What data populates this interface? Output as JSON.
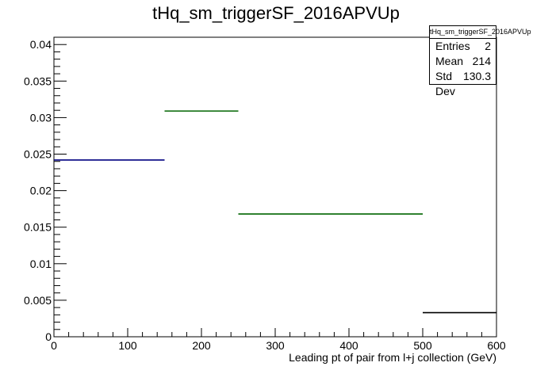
{
  "chart_data": {
    "type": "histogram",
    "title": "tHq_sm_triggerSF_2016APVUp",
    "xlabel": "Leading pt of pair from l+j collection (GeV)",
    "ylabel": "",
    "xlim": [
      0,
      600
    ],
    "ylim": [
      0,
      0.041
    ],
    "x_ticks": [
      0,
      100,
      200,
      300,
      400,
      500,
      600
    ],
    "x_tick_labels": [
      "0",
      "100",
      "200",
      "300",
      "400",
      "500",
      "600"
    ],
    "y_ticks": [
      0,
      0.005,
      0.01,
      0.015,
      0.02,
      0.025,
      0.03,
      0.035,
      0.04
    ],
    "y_tick_labels": [
      "0",
      "0.005",
      "0.01",
      "0.015",
      "0.02",
      "0.025",
      "0.03",
      "0.035",
      "0.04"
    ],
    "bins": [
      {
        "x0": 0,
        "x1": 150,
        "value": 0.0242,
        "color": "#000080"
      },
      {
        "x0": 150,
        "x1": 250,
        "value": 0.0309,
        "color": "#006400"
      },
      {
        "x0": 250,
        "x1": 500,
        "value": 0.0168,
        "color": "#006400"
      },
      {
        "x0": 500,
        "x1": 600,
        "value": 0.0033,
        "color": "#000000"
      }
    ],
    "grid": false,
    "legend_position": "top-right"
  },
  "stats": {
    "title": "tHq_sm_triggerSF_2016APVUp",
    "rows": [
      {
        "label": "Entries",
        "value": "2"
      },
      {
        "label": "Mean",
        "value": "214"
      },
      {
        "label": "Std Dev",
        "value": "130.3"
      }
    ]
  }
}
